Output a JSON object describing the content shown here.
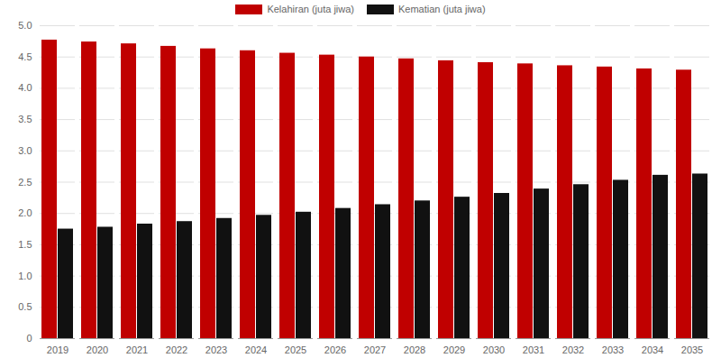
{
  "chart_data": {
    "type": "bar",
    "categories": [
      "2019",
      "2020",
      "2021",
      "2022",
      "2023",
      "2024",
      "2025",
      "2026",
      "2027",
      "2028",
      "2029",
      "2030",
      "2031",
      "2032",
      "2033",
      "2034",
      "2035"
    ],
    "series": [
      {
        "name": "Kelahiran (juta jiwa)",
        "color": "#c00000",
        "values": [
          4.77,
          4.74,
          4.71,
          4.67,
          4.63,
          4.6,
          4.56,
          4.53,
          4.5,
          4.47,
          4.44,
          4.41,
          4.39,
          4.36,
          4.34,
          4.31,
          4.29
        ]
      },
      {
        "name": "Kematian (juta jiwa)",
        "color": "#111111",
        "values": [
          1.75,
          1.78,
          1.83,
          1.87,
          1.92,
          1.97,
          2.02,
          2.08,
          2.14,
          2.2,
          2.26,
          2.32,
          2.39,
          2.46,
          2.53,
          2.61,
          2.63
        ]
      }
    ],
    "ylim": [
      0,
      5
    ],
    "yticks": [
      0,
      0.5,
      {
        "value": 1,
        "label": "1.0"
      },
      1.5,
      {
        "value": 2,
        "label": "2.0"
      },
      2.5,
      {
        "value": 3,
        "label": "3.0"
      },
      3.5,
      {
        "value": 4,
        "label": "4.0"
      },
      4.5,
      {
        "value": 5,
        "label": "5.0"
      }
    ],
    "grid": true,
    "legend": "top"
  }
}
